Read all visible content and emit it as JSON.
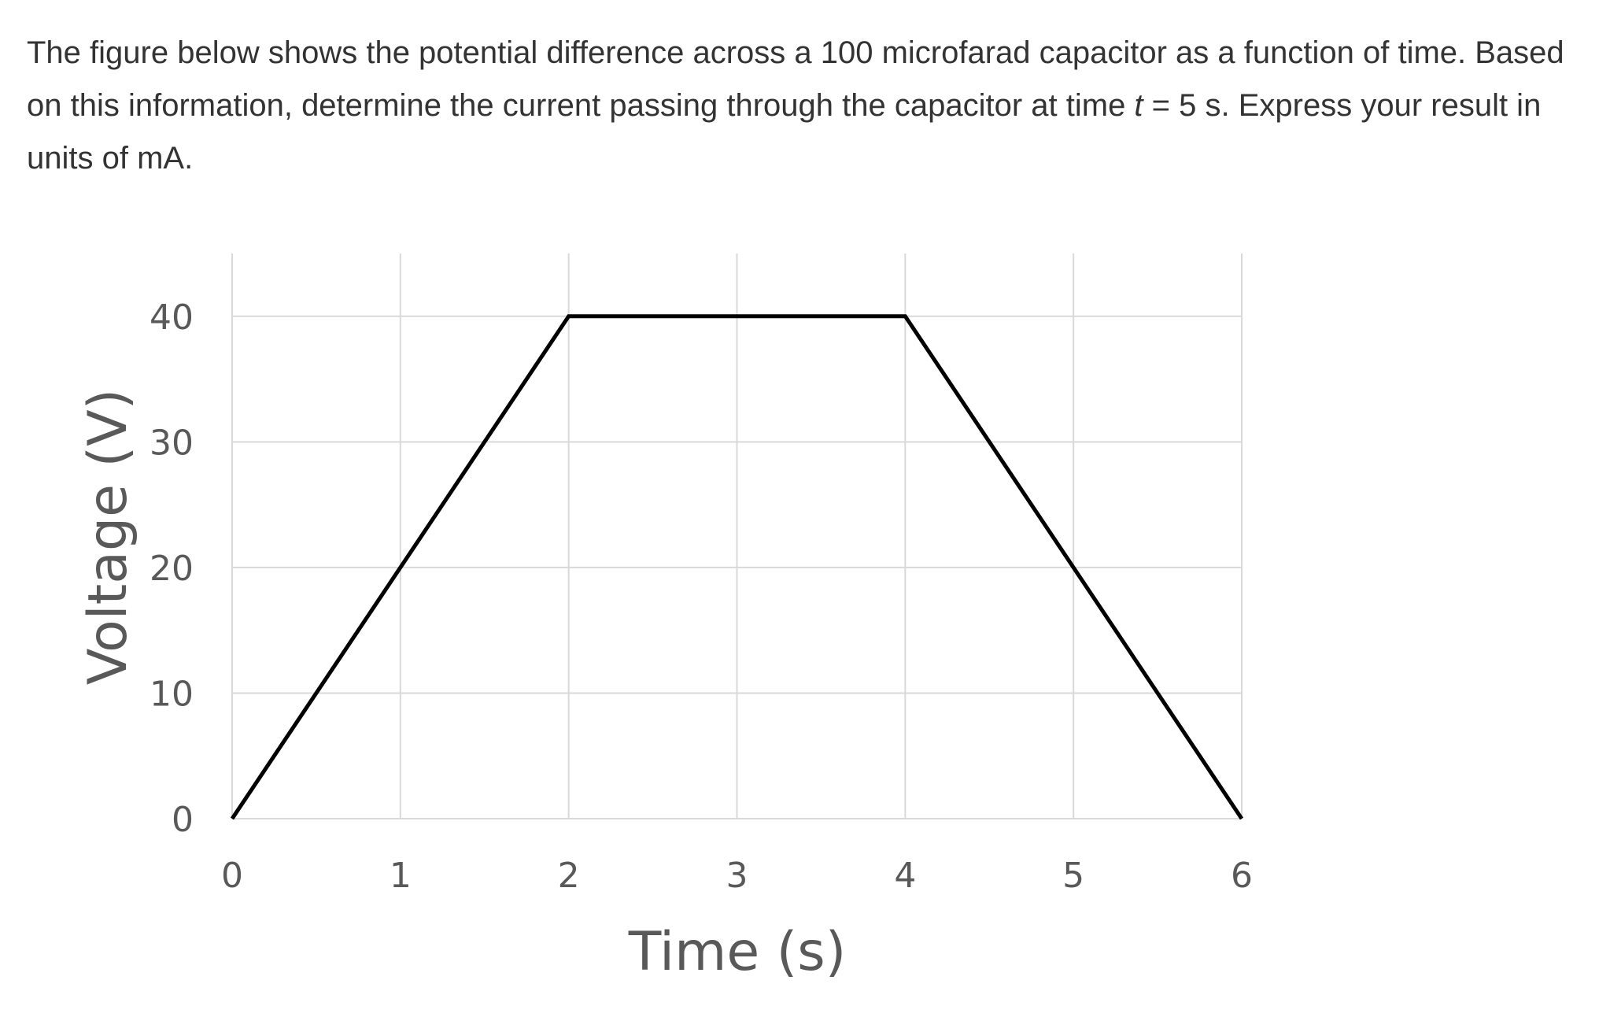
{
  "question": {
    "part1": "The figure below shows the potential difference across a 100 microfarad capacitor as a function of time. Based on this information, determine the current passing through the capacitor at time ",
    "variable": "t",
    "part2": " = 5 s. Express your result in units of mA."
  },
  "chart_data": {
    "type": "line",
    "title": "",
    "xlabel": "Time (s)",
    "ylabel": "Voltage (V)",
    "xlim": [
      0,
      6
    ],
    "ylim": [
      0,
      45
    ],
    "xticks": [
      0,
      1,
      2,
      3,
      4,
      5,
      6
    ],
    "yticks": [
      0,
      10,
      20,
      30,
      40
    ],
    "grid": true,
    "series": [
      {
        "x": [
          0,
          2,
          4,
          6
        ],
        "y": [
          0,
          40,
          40,
          0
        ],
        "color": "#000000"
      }
    ],
    "colors": {
      "line": "#000000",
      "grid": "#d9d9d9",
      "tick_text": "#595959"
    }
  }
}
